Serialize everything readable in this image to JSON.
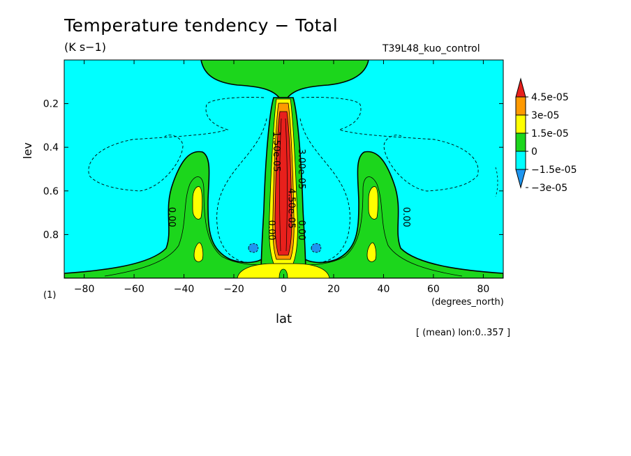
{
  "chart_data": {
    "type": "heatmap",
    "title": "Temperature tendency − Total",
    "units": "(K s−1)",
    "run_label": "T39L48_kuo_control",
    "xlabel": "lat",
    "x_unit_label": "(degrees_north)",
    "ylabel": "lev",
    "panel_label": "(1)",
    "note": "[ (mean) lon:0..357 ]",
    "xlim": [
      -88,
      88
    ],
    "ylim": [
      1.0,
      0.0
    ],
    "y_inverted": true,
    "x_ticks": [
      -80,
      -60,
      -40,
      -20,
      0,
      20,
      40,
      60,
      80
    ],
    "y_ticks": [
      0.2,
      0.4,
      0.6,
      0.8
    ],
    "colorbar": {
      "levels": [
        "4.5e-05",
        "3e-05",
        "1.5e-05",
        "0",
        "−1.5e-05",
        "−3e-05"
      ],
      "colors": [
        "#e8201c",
        "#ff9a00",
        "#ffff00",
        "#1cd61c",
        "#00ffff",
        "#1e96f0"
      ]
    },
    "contour_labels": [
      {
        "text": "0.00",
        "lat": -46,
        "lev": 0.72
      },
      {
        "text": "0.00",
        "lat": 48,
        "lev": 0.72
      },
      {
        "text": "0.00",
        "lat": -6,
        "lev": 0.78
      },
      {
        "text": "0.00",
        "lat": 6,
        "lev": 0.78
      },
      {
        "text": "1.50e-05",
        "lat": -4,
        "lev": 0.42
      },
      {
        "text": "4.50e-05",
        "lat": 2,
        "lev": 0.68
      },
      {
        "text": "3.00e-05",
        "lat": 6,
        "lev": 0.5
      }
    ],
    "regions": [
      {
        "value_class": "0",
        "desc": "near-top band",
        "lat_range": [
          -33,
          33
        ],
        "lev_range": [
          0.0,
          0.12
        ]
      },
      {
        "value_class": "0",
        "desc": "equatorial column",
        "lat_range": [
          -10,
          10
        ],
        "lev_range": [
          0.1,
          1.0
        ]
      },
      {
        "value_class": "0",
        "desc": "midlatitude lobe south",
        "lat_range": [
          -55,
          -15
        ],
        "lev_range": [
          0.42,
          1.0
        ]
      },
      {
        "value_class": "0",
        "desc": "midlatitude lobe north",
        "lat_range": [
          15,
          55
        ],
        "lev_range": [
          0.42,
          1.0
        ]
      },
      {
        "value_class": "1.5e-05",
        "desc": "equatorial surface",
        "lat_range": [
          -18,
          18
        ],
        "lev_range": [
          0.92,
          1.0
        ]
      },
      {
        "value_class": "4.5e-05",
        "desc": "equatorial core",
        "lat_range": [
          -3,
          3
        ],
        "lev_range": [
          0.2,
          0.88
        ]
      }
    ]
  }
}
